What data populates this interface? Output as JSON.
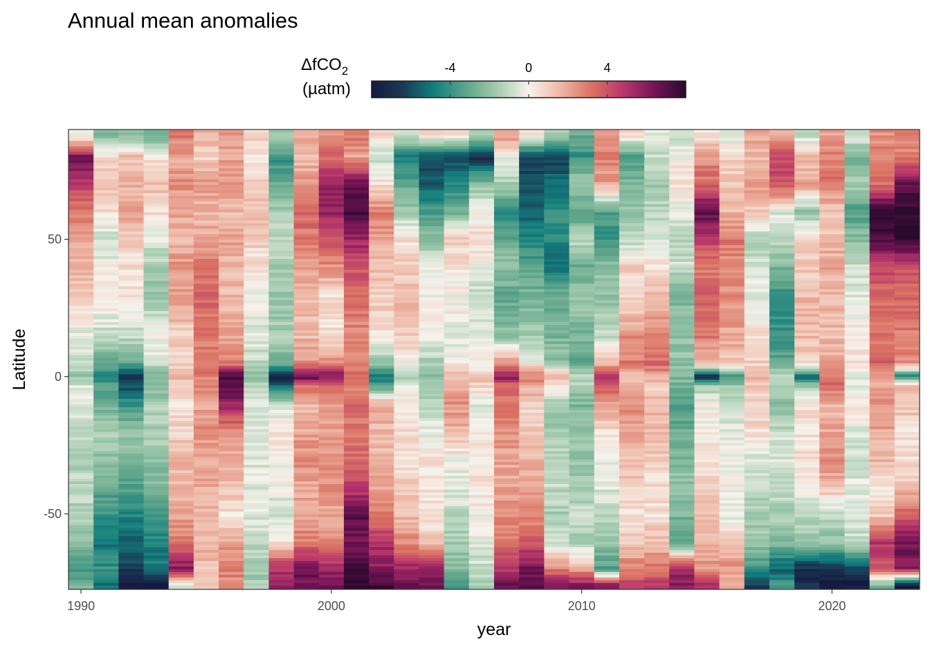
{
  "chart_data": {
    "type": "heatmap",
    "title": "Annual mean anomalies",
    "xlabel": "year",
    "ylabel": "Latitude",
    "legend": {
      "title_line1_prefix": "ΔfCO",
      "title_line1_subscript": "2",
      "title_line2": "(µatm)",
      "placement": "top",
      "range": [
        -8,
        8
      ],
      "ticks": [
        -4,
        0,
        4
      ],
      "tick_labels": [
        "-4",
        "0",
        "4"
      ],
      "palette": [
        "#15193f",
        "#1a3a55",
        "#127f7d",
        "#5ea58a",
        "#a4cbaf",
        "#f6f3ec",
        "#eeb8a6",
        "#da7263",
        "#b9386b",
        "#741455",
        "#2a0a2e"
      ]
    },
    "xlim": [
      1989.5,
      2023.5
    ],
    "ylim": [
      -77.5,
      90
    ],
    "xticks": [
      1990,
      2000,
      2010,
      2020
    ],
    "xtick_labels": [
      "1990",
      "2000",
      "2010",
      "2020"
    ],
    "yticks": [
      -50,
      0,
      50
    ],
    "ytick_labels": [
      "-50",
      "0",
      "50"
    ],
    "years": [
      1990,
      1991,
      1992,
      1993,
      1994,
      1995,
      1996,
      1997,
      1998,
      1999,
      2000,
      2001,
      2002,
      2003,
      2004,
      2005,
      2006,
      2007,
      2008,
      2009,
      2010,
      2011,
      2012,
      2013,
      2014,
      2015,
      2016,
      2017,
      2018,
      2019,
      2020,
      2021,
      2022,
      2023
    ],
    "latitude_knots": [
      -76,
      -70,
      -60,
      -50,
      -40,
      -30,
      -20,
      -10,
      -3,
      0,
      5,
      15,
      30,
      40,
      50,
      60,
      70,
      80,
      88
    ],
    "grid": false,
    "values": [
      [
        -2.5,
        -4.0,
        -2.0,
        -1.5,
        -1.0,
        -1.5,
        -1.0,
        -0.5,
        -0.5,
        -2.0,
        -1.0,
        -0.5,
        1.0,
        1.5,
        2.0,
        3.0,
        4.5,
        6.5,
        -0.5
      ],
      [
        -5.0,
        -4.0,
        -5.0,
        -4.0,
        -3.0,
        -2.0,
        -1.5,
        -3.0,
        -3.5,
        -5.0,
        -3.0,
        -1.0,
        0.5,
        0.0,
        -1.0,
        0.5,
        1.5,
        0.5,
        -2.5
      ],
      [
        -8.0,
        -6.5,
        -5.5,
        -4.5,
        -3.5,
        -2.5,
        -2.0,
        -4.0,
        -6.0,
        -7.0,
        -3.0,
        -1.0,
        0.5,
        0.5,
        1.0,
        2.5,
        1.5,
        1.5,
        -2.5
      ],
      [
        -8.0,
        -5.0,
        -4.5,
        -3.5,
        -2.5,
        -2.0,
        -1.5,
        -1.5,
        -2.5,
        -2.5,
        -1.0,
        0.0,
        -2.0,
        -1.5,
        -0.5,
        0.5,
        1.5,
        0.5,
        -3.0
      ],
      [
        -1.0,
        6.0,
        3.0,
        2.0,
        1.5,
        1.5,
        1.0,
        0.5,
        1.0,
        1.5,
        1.0,
        1.0,
        2.0,
        2.5,
        1.5,
        2.0,
        2.5,
        2.0,
        3.0
      ],
      [
        1.0,
        1.5,
        1.5,
        1.5,
        2.0,
        2.0,
        2.5,
        2.0,
        2.5,
        3.0,
        3.0,
        3.0,
        3.5,
        3.0,
        2.0,
        1.5,
        2.5,
        1.0,
        1.5
      ],
      [
        2.5,
        3.0,
        2.0,
        0.5,
        1.5,
        2.0,
        2.5,
        5.5,
        7.0,
        7.5,
        3.0,
        2.0,
        1.5,
        1.5,
        2.0,
        1.5,
        2.5,
        2.0,
        2.5
      ],
      [
        -1.5,
        -2.0,
        -1.0,
        -0.5,
        -0.5,
        -0.5,
        -0.5,
        -0.5,
        -1.5,
        -2.0,
        -1.0,
        -0.5,
        0.0,
        0.5,
        1.0,
        1.5,
        1.0,
        0.5,
        1.0
      ],
      [
        6.0,
        5.0,
        0.5,
        -1.0,
        0.0,
        0.0,
        0.5,
        -1.0,
        -5.0,
        -8.0,
        -2.5,
        -1.5,
        -2.0,
        -1.5,
        -1.0,
        -1.5,
        -3.0,
        -4.0,
        -1.5
      ],
      [
        6.5,
        6.5,
        3.0,
        2.0,
        2.0,
        2.5,
        2.0,
        1.5,
        3.5,
        7.0,
        2.5,
        1.5,
        1.5,
        2.0,
        3.0,
        3.5,
        2.5,
        1.5,
        2.0
      ],
      [
        6.5,
        5.5,
        2.5,
        2.0,
        2.5,
        2.5,
        2.0,
        2.5,
        4.0,
        6.5,
        2.5,
        0.5,
        0.5,
        2.5,
        4.0,
        5.5,
        6.0,
        3.5,
        2.5
      ],
      [
        8.0,
        7.5,
        6.5,
        7.0,
        4.5,
        3.5,
        3.0,
        3.5,
        3.0,
        3.5,
        3.0,
        2.5,
        3.5,
        4.0,
        5.5,
        7.5,
        7.0,
        2.0,
        3.0
      ],
      [
        7.5,
        6.0,
        5.0,
        3.0,
        2.0,
        1.5,
        1.5,
        2.0,
        -3.5,
        -5.0,
        -2.0,
        0.5,
        1.0,
        1.5,
        2.0,
        3.0,
        0.5,
        -1.0,
        1.0
      ],
      [
        6.5,
        5.5,
        2.5,
        1.5,
        1.0,
        0.5,
        0.5,
        0.5,
        -0.5,
        -1.5,
        0.0,
        1.0,
        1.5,
        1.0,
        0.5,
        -1.5,
        -3.0,
        -5.0,
        -0.5
      ],
      [
        6.5,
        5.5,
        1.0,
        0.5,
        0.5,
        0.5,
        -0.5,
        -1.0,
        -1.5,
        -2.0,
        -1.5,
        0.0,
        0.0,
        -0.5,
        -2.0,
        -3.5,
        -5.5,
        -6.0,
        0.5
      ],
      [
        -4.0,
        -2.5,
        -1.5,
        -1.0,
        -0.5,
        0.0,
        1.5,
        2.5,
        2.0,
        1.5,
        0.0,
        -0.5,
        0.0,
        0.5,
        1.0,
        -2.5,
        -4.5,
        -6.0,
        0.5
      ],
      [
        -1.5,
        -1.0,
        -0.5,
        0.0,
        0.5,
        0.5,
        0.0,
        -0.5,
        1.0,
        1.5,
        0.0,
        -0.5,
        -1.0,
        0.0,
        0.5,
        0.0,
        -2.0,
        -7.0,
        -1.0
      ],
      [
        6.5,
        5.0,
        3.0,
        2.5,
        2.0,
        2.0,
        2.5,
        3.0,
        3.5,
        6.0,
        2.5,
        -2.0,
        -3.0,
        -2.0,
        -3.0,
        -4.0,
        -1.5,
        -0.5,
        2.5
      ],
      [
        7.0,
        6.5,
        4.0,
        2.5,
        2.0,
        1.5,
        1.0,
        1.0,
        2.0,
        3.0,
        0.0,
        -1.5,
        -2.5,
        -3.5,
        -4.5,
        -5.5,
        -6.0,
        -6.5,
        0.5
      ],
      [
        6.0,
        3.0,
        -1.0,
        -1.5,
        -1.0,
        -1.0,
        -1.5,
        -2.0,
        0.5,
        2.0,
        -2.0,
        -2.5,
        -3.0,
        -5.0,
        -4.5,
        -4.0,
        -5.0,
        -6.5,
        -1.5
      ],
      [
        6.0,
        2.0,
        -1.5,
        -1.0,
        -1.5,
        -2.0,
        -2.0,
        -2.5,
        -1.5,
        -1.0,
        -3.5,
        -2.5,
        -2.0,
        -3.0,
        -1.0,
        -3.5,
        -1.5,
        -4.0,
        -3.0
      ],
      [
        6.0,
        -3.5,
        -2.0,
        -1.0,
        -0.5,
        0.0,
        0.5,
        2.0,
        4.0,
        5.5,
        1.5,
        -1.0,
        -2.0,
        -2.0,
        -4.0,
        -3.5,
        2.0,
        3.0,
        2.0
      ],
      [
        4.5,
        3.0,
        1.0,
        0.5,
        1.0,
        1.5,
        2.0,
        2.5,
        2.0,
        1.5,
        3.0,
        2.5,
        0.5,
        1.0,
        -1.0,
        -2.0,
        -2.5,
        -3.5,
        0.5
      ],
      [
        5.0,
        3.0,
        1.5,
        0.5,
        0.5,
        1.0,
        1.5,
        1.5,
        1.0,
        2.0,
        3.5,
        2.5,
        1.5,
        0.5,
        -0.5,
        -1.0,
        -2.0,
        -1.0,
        -0.5
      ],
      [
        6.0,
        5.5,
        -3.5,
        -2.5,
        -2.0,
        -2.5,
        -3.0,
        -3.5,
        -2.5,
        -2.5,
        -2.0,
        -2.0,
        -2.5,
        -1.0,
        -1.0,
        -0.5,
        0.5,
        0.0,
        -1.0
      ],
      [
        5.0,
        2.5,
        1.5,
        1.5,
        1.0,
        0.5,
        0.0,
        0.0,
        -1.5,
        -7.5,
        1.5,
        3.0,
        3.5,
        3.0,
        4.5,
        7.0,
        3.5,
        2.5,
        0.5
      ],
      [
        1.5,
        2.5,
        1.0,
        -0.5,
        0.0,
        0.0,
        -0.5,
        -1.0,
        -2.0,
        -4.0,
        1.0,
        2.0,
        2.5,
        2.5,
        3.0,
        1.5,
        1.0,
        1.0,
        -1.0
      ],
      [
        -6.5,
        -4.0,
        -2.0,
        -1.5,
        -1.0,
        -0.5,
        0.5,
        1.0,
        1.0,
        1.5,
        1.0,
        0.5,
        -0.5,
        -0.5,
        -1.5,
        1.0,
        2.5,
        1.5,
        2.0
      ],
      [
        -3.5,
        -5.5,
        -2.5,
        -1.5,
        -1.0,
        -0.5,
        -1.0,
        -2.0,
        -1.5,
        -1.0,
        -3.0,
        -4.0,
        -4.0,
        -2.5,
        -1.0,
        -0.5,
        4.0,
        4.5,
        1.5
      ],
      [
        -7.0,
        -7.0,
        -2.0,
        -1.0,
        0.0,
        0.5,
        0.5,
        0.5,
        -2.0,
        -5.5,
        1.0,
        1.5,
        1.5,
        1.0,
        1.0,
        -2.0,
        2.0,
        1.5,
        -1.0
      ],
      [
        -8.0,
        -6.5,
        -2.0,
        -1.0,
        1.5,
        2.5,
        2.0,
        1.5,
        3.5,
        3.0,
        2.0,
        1.5,
        1.5,
        2.0,
        1.5,
        1.0,
        3.0,
        3.0,
        2.0
      ],
      [
        -8.0,
        -6.0,
        -1.0,
        -0.5,
        -0.5,
        -1.0,
        -0.5,
        0.5,
        -0.5,
        -0.5,
        0.5,
        0.5,
        -0.5,
        -1.0,
        -2.0,
        -3.5,
        -1.5,
        -2.5,
        -0.5
      ],
      [
        -2.5,
        3.5,
        5.0,
        1.0,
        0.5,
        1.5,
        2.0,
        2.5,
        2.0,
        2.5,
        3.5,
        3.0,
        3.5,
        4.5,
        7.0,
        8.0,
        3.5,
        3.0,
        2.5
      ],
      [
        -8.0,
        6.0,
        6.5,
        3.5,
        1.5,
        0.5,
        0.5,
        1.5,
        1.5,
        -4.5,
        2.5,
        3.0,
        3.5,
        4.0,
        8.0,
        8.0,
        7.0,
        3.0,
        2.5
      ]
    ]
  }
}
